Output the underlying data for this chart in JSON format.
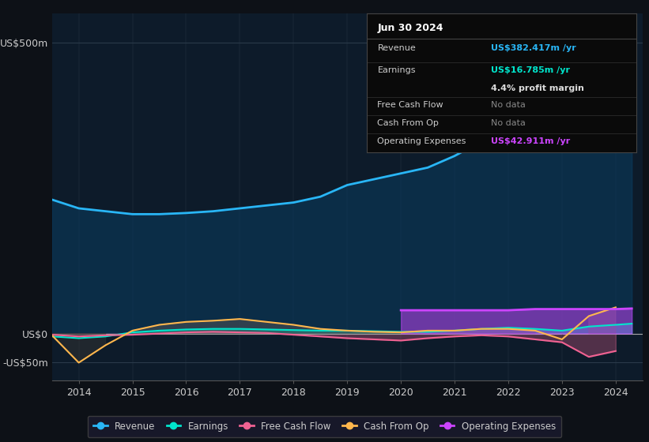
{
  "background_color": "#0d1117",
  "plot_bg_color": "#0d1b2a",
  "years": [
    2013.5,
    2014.0,
    2014.5,
    2015.0,
    2015.5,
    2016.0,
    2016.5,
    2017.0,
    2017.5,
    2018.0,
    2018.5,
    2019.0,
    2019.5,
    2020.0,
    2020.5,
    2021.0,
    2021.5,
    2022.0,
    2022.5,
    2023.0,
    2023.5,
    2024.0,
    2024.3
  ],
  "revenue": [
    230,
    215,
    210,
    205,
    205,
    207,
    210,
    215,
    220,
    225,
    235,
    255,
    265,
    275,
    285,
    305,
    330,
    360,
    395,
    480,
    430,
    375,
    382
  ],
  "earnings": [
    -5,
    -8,
    -5,
    2,
    5,
    7,
    8,
    8,
    7,
    6,
    5,
    5,
    4,
    3,
    3,
    5,
    8,
    10,
    8,
    5,
    12,
    15,
    17
  ],
  "free_cash_flow": [
    -2,
    -5,
    -3,
    -2,
    0,
    2,
    3,
    2,
    1,
    -2,
    -5,
    -8,
    -10,
    -12,
    -8,
    -5,
    -3,
    -5,
    -10,
    -15,
    -40,
    -30,
    null
  ],
  "cash_from_op": [
    -3,
    -50,
    -20,
    5,
    15,
    20,
    22,
    25,
    20,
    15,
    8,
    5,
    3,
    2,
    5,
    5,
    8,
    8,
    5,
    -10,
    30,
    45,
    null
  ],
  "operating_expenses": [
    null,
    null,
    null,
    null,
    null,
    null,
    null,
    null,
    null,
    null,
    null,
    null,
    null,
    40,
    40,
    40,
    40,
    40,
    42,
    42,
    42,
    42,
    43
  ],
  "ylim": [
    -80,
    550
  ],
  "yticks": [
    -50,
    0,
    500
  ],
  "ytick_labels": [
    "-US$50m",
    "US$0",
    "US$500m"
  ],
  "xticks": [
    2014,
    2015,
    2016,
    2017,
    2018,
    2019,
    2020,
    2021,
    2022,
    2023,
    2024
  ],
  "revenue_color": "#29b6f6",
  "earnings_color": "#00e5cc",
  "free_cash_flow_color": "#f06292",
  "cash_from_op_color": "#ffb74d",
  "operating_expenses_color": "#cc44ff",
  "tooltip": {
    "date": "Jun 30 2024",
    "revenue_label": "Revenue",
    "revenue_value": "US$382.417m /yr",
    "revenue_color": "#29b6f6",
    "earnings_label": "Earnings",
    "earnings_value": "US$16.785m /yr",
    "earnings_color": "#00e5cc",
    "margin_text": "4.4% profit margin",
    "fcf_label": "Free Cash Flow",
    "fcf_value": "No data",
    "cfop_label": "Cash From Op",
    "cfop_value": "No data",
    "opex_label": "Operating Expenses",
    "opex_value": "US$42.911m /yr",
    "opex_color": "#cc44ff",
    "bg_color": "#0a0a0a",
    "border_color": "#444444",
    "text_color": "#cccccc"
  },
  "legend_items": [
    {
      "label": "Revenue",
      "color": "#29b6f6"
    },
    {
      "label": "Earnings",
      "color": "#00e5cc"
    },
    {
      "label": "Free Cash Flow",
      "color": "#f06292"
    },
    {
      "label": "Cash From Op",
      "color": "#ffb74d"
    },
    {
      "label": "Operating Expenses",
      "color": "#cc44ff"
    }
  ]
}
